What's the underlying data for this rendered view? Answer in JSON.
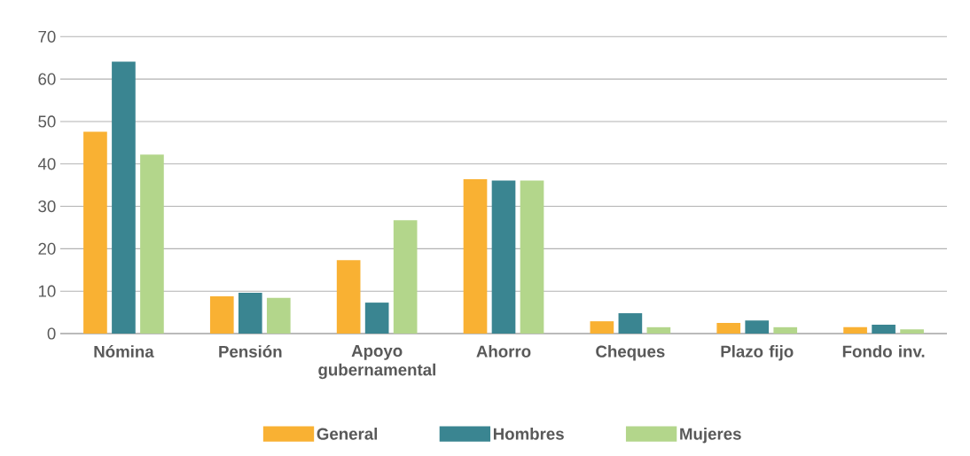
{
  "chart_data": {
    "type": "bar",
    "categories": [
      "Nómina",
      "Pensión",
      "Apoyo gubernamental",
      "Ahorro",
      "Cheques",
      "Plazo fijo",
      "Fondo inv."
    ],
    "series": [
      {
        "name": "General",
        "color": "#f9b133",
        "values": [
          47.6,
          8.8,
          17.3,
          36.4,
          2.9,
          2.5,
          1.5
        ]
      },
      {
        "name": "Hombres",
        "color": "#3a8591",
        "values": [
          64.1,
          9.6,
          7.3,
          36.1,
          4.8,
          3.1,
          2.1
        ]
      },
      {
        "name": "Mujeres",
        "color": "#b3d68b",
        "values": [
          42.2,
          8.4,
          26.7,
          36.1,
          1.5,
          1.5,
          1.0
        ]
      }
    ],
    "ylim": [
      0,
      70
    ],
    "yticks": [
      0,
      10,
      20,
      30,
      40,
      50,
      60,
      70
    ],
    "grid": "y",
    "legend": "bottom"
  }
}
